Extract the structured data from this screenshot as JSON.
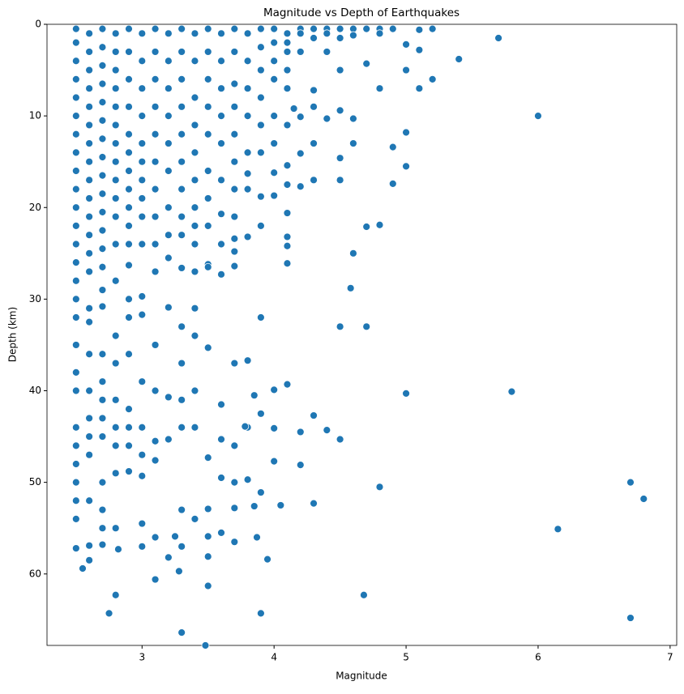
{
  "chart_data": {
    "type": "scatter",
    "title": "Magnitude vs Depth of Earthquakes",
    "x_label": "Magnitude",
    "y_label": "Depth (km)",
    "color": "#1f77b4",
    "grid": false,
    "xlim": [
      2.28,
      7.05
    ],
    "xticks": [
      3,
      4,
      5,
      6,
      7
    ],
    "ylim": [
      67.8,
      0
    ],
    "yticks": [
      0,
      10,
      20,
      30,
      40,
      50,
      60
    ],
    "x": [
      2.5,
      2.5,
      2.5,
      2.5,
      2.5,
      2.5,
      2.5,
      2.5,
      2.5,
      2.5,
      2.5,
      2.5,
      2.5,
      2.5,
      2.5,
      2.5,
      2.5,
      2.5,
      2.5,
      2.5,
      2.5,
      2.5,
      2.5,
      2.5,
      2.5,
      2.5,
      2.6,
      2.6,
      2.6,
      2.6,
      2.6,
      2.6,
      2.6,
      2.6,
      2.6,
      2.6,
      2.6,
      2.6,
      2.6,
      2.6,
      2.6,
      2.6,
      2.6,
      2.6,
      2.6,
      2.6,
      2.6,
      2.7,
      2.7,
      2.7,
      2.7,
      2.7,
      2.7,
      2.7,
      2.7,
      2.7,
      2.7,
      2.7,
      2.7,
      2.7,
      2.7,
      2.7,
      2.7,
      2.7,
      2.7,
      2.7,
      2.7,
      2.7,
      2.7,
      2.7,
      2.7,
      2.8,
      2.8,
      2.8,
      2.8,
      2.8,
      2.8,
      2.8,
      2.8,
      2.8,
      2.8,
      2.8,
      2.8,
      2.8,
      2.8,
      2.8,
      2.8,
      2.8,
      2.8,
      2.8,
      2.8,
      2.9,
      2.9,
      2.9,
      2.9,
      2.9,
      2.9,
      2.9,
      2.9,
      2.9,
      2.9,
      2.9,
      2.9,
      2.9,
      2.9,
      2.9,
      2.9,
      2.9,
      2.9,
      3.0,
      3.0,
      3.0,
      3.0,
      3.0,
      3.0,
      3.0,
      3.0,
      3.0,
      3.0,
      3.0,
      3.0,
      3.0,
      3.0,
      3.0,
      3.0,
      3.1,
      3.1,
      3.1,
      3.1,
      3.1,
      3.1,
      3.1,
      3.1,
      3.1,
      3.1,
      3.1,
      3.1,
      3.1,
      3.1,
      3.2,
      3.2,
      3.2,
      3.2,
      3.2,
      3.2,
      3.2,
      3.2,
      3.2,
      3.2,
      3.2,
      3.3,
      3.3,
      3.3,
      3.3,
      3.3,
      3.3,
      3.3,
      3.3,
      3.3,
      3.3,
      3.3,
      3.3,
      3.3,
      3.3,
      3.4,
      3.4,
      3.4,
      3.4,
      3.4,
      3.4,
      3.4,
      3.4,
      3.4,
      3.4,
      3.4,
      3.4,
      3.4,
      3.4,
      3.5,
      3.5,
      3.5,
      3.5,
      3.5,
      3.5,
      3.5,
      3.5,
      3.5,
      3.5,
      3.5,
      3.5,
      3.6,
      3.6,
      3.6,
      3.6,
      3.6,
      3.6,
      3.6,
      3.6,
      3.6,
      3.6,
      3.6,
      3.7,
      3.7,
      3.7,
      3.7,
      3.7,
      3.7,
      3.7,
      3.7,
      3.7,
      3.7,
      3.7,
      3.7,
      3.8,
      3.8,
      3.8,
      3.8,
      3.8,
      3.8,
      3.8,
      3.8,
      3.9,
      3.9,
      3.9,
      3.9,
      3.9,
      3.9,
      3.9,
      3.9,
      4.0,
      4.0,
      4.0,
      4.0,
      4.0,
      4.0,
      4.0,
      4.1,
      4.1,
      4.1,
      4.1,
      4.1,
      4.2,
      4.2,
      4.2,
      4.3,
      4.3,
      4.4,
      4.4,
      4.5,
      4.5,
      4.6,
      4.6,
      4.7,
      4.8,
      4.8,
      4.9,
      5.7,
      5.4,
      5.2,
      5.1,
      5.2,
      5.1,
      5.0,
      5.1,
      5.0,
      4.8,
      6.0,
      5.0,
      5.0,
      4.9,
      4.9,
      4.7,
      4.8,
      4.6,
      4.58,
      4.5,
      4.7,
      5.0,
      5.8,
      4.8,
      6.7,
      6.8,
      6.15,
      4.68,
      6.7,
      3.9,
      3.3,
      3.48,
      2.75,
      2.8,
      3.1,
      3.28,
      3.5,
      3.95,
      2.55,
      4.5,
      4.4,
      4.3,
      4.3,
      4.2,
      4.2,
      4.1,
      4.0,
      4.0,
      4.0,
      4.05,
      3.9,
      3.85,
      3.87,
      3.8,
      3.8,
      3.9,
      3.9,
      3.85,
      3.78,
      3.6,
      3.7,
      3.5,
      3.5,
      3.3,
      3.2,
      3.25,
      3.1,
      3.0,
      2.82,
      2.6,
      2.6,
      2.5,
      3.4,
      3.5,
      3.6,
      3.3,
      3.0,
      3.2,
      2.9,
      2.6,
      2.7,
      4.6,
      4.6,
      4.5,
      4.4,
      4.5,
      4.5,
      4.3,
      4.3,
      4.2,
      4.2,
      4.1,
      4.1,
      4.1,
      4.1,
      4.0,
      4.1,
      4.1,
      4.1,
      4.2,
      4.15,
      4.3,
      4.3,
      4.4,
      4.7,
      4.5,
      3.8,
      3.7,
      3.7,
      3.7
    ],
    "values": [
      0.5,
      2,
      4,
      6,
      8,
      10,
      12,
      14,
      16,
      18,
      20,
      22,
      24,
      26,
      28,
      30,
      32,
      35,
      38,
      40,
      44,
      46,
      48,
      50,
      52,
      54,
      1,
      3,
      5,
      7,
      9,
      11,
      13,
      15,
      17,
      19,
      21,
      23,
      25,
      27,
      31,
      36,
      40,
      43,
      45,
      47,
      52,
      0.5,
      2.5,
      4.5,
      6.5,
      8.5,
      10.5,
      12.5,
      14.5,
      16.5,
      18.5,
      20.5,
      22.5,
      24.5,
      26.5,
      29,
      36,
      39,
      41,
      43,
      45,
      50,
      53,
      55,
      56.8,
      1,
      3,
      5,
      7,
      9,
      11,
      13,
      15,
      17,
      19,
      21,
      24,
      28,
      34,
      37,
      41,
      44,
      46,
      49,
      55,
      0.5,
      3,
      6,
      9,
      12,
      14,
      16,
      18,
      20,
      22,
      24,
      26.3,
      30,
      36,
      42,
      44,
      46,
      48.8,
      1,
      4,
      7,
      10,
      13,
      15,
      17,
      19,
      21,
      24,
      29.7,
      39,
      44,
      47,
      49.3,
      54.5,
      0.5,
      3,
      6,
      9,
      12,
      15,
      18,
      21,
      24,
      27,
      35,
      40,
      45.5,
      47.6,
      1,
      4,
      7,
      10,
      13,
      16,
      20,
      23,
      25.5,
      40.7,
      45.3,
      0.5,
      3,
      6,
      9,
      12,
      15,
      18,
      21,
      23,
      33,
      37,
      41,
      44,
      53,
      1,
      4,
      8,
      11,
      14,
      17,
      20,
      22,
      24,
      27,
      34,
      40,
      44,
      54,
      0.5,
      3,
      6,
      9,
      12,
      16,
      19,
      22,
      26.2,
      35.3,
      47.3,
      52.9,
      1,
      4,
      7,
      10,
      13,
      17,
      20.7,
      24,
      41.5,
      45.3,
      49.5,
      0.5,
      3,
      6.5,
      9,
      12,
      15,
      18,
      21,
      37,
      46,
      50,
      52.8,
      1,
      4,
      7,
      10,
      14,
      16.3,
      18,
      44,
      0.5,
      2.5,
      5,
      8,
      11,
      14,
      18.8,
      22,
      0.5,
      2,
      4,
      6,
      10,
      13,
      16.2,
      1,
      2,
      3,
      5,
      7,
      0.5,
      1,
      3,
      0.5,
      1.5,
      0.5,
      1,
      0.5,
      1.5,
      0.5,
      1.2,
      0.5,
      0.5,
      1,
      0.5,
      1.5,
      3.8,
      6,
      7,
      0.5,
      0.6,
      2.2,
      2.8,
      5,
      7,
      10,
      11.8,
      15.5,
      13.4,
      17.4,
      22.1,
      21.9,
      25,
      28.8,
      33,
      33,
      40.3,
      40.1,
      50.5,
      50,
      51.8,
      55.1,
      62.3,
      64.8,
      64.3,
      66.4,
      67.8,
      64.3,
      62.3,
      60.6,
      59.7,
      61.3,
      58.4,
      59.4,
      45.3,
      44.3,
      42.7,
      52.3,
      48.1,
      44.5,
      39.3,
      39.9,
      44.1,
      47.7,
      52.5,
      51.1,
      52.6,
      56,
      49.7,
      36.7,
      32,
      42.5,
      40.5,
      43.9,
      55.5,
      56.5,
      55.9,
      58.1,
      57,
      58.2,
      55.9,
      56,
      57,
      57.3,
      56.9,
      58.5,
      57.2,
      31,
      26.5,
      27.3,
      26.6,
      31.7,
      30.9,
      32,
      32.5,
      30.8,
      10.3,
      13,
      9.4,
      10.3,
      14.6,
      17,
      17,
      13,
      14.1,
      17.7,
      20.6,
      23.2,
      24.2,
      26.1,
      18.7,
      17.5,
      15.4,
      11,
      10.1,
      9.2,
      7.2,
      9,
      3,
      4.3,
      5,
      23.2,
      23.4,
      24.8,
      26.4
    ]
  }
}
